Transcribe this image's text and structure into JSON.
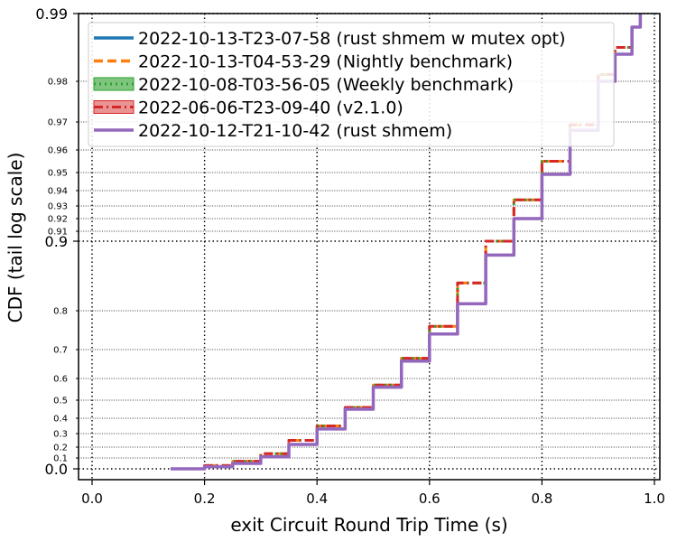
{
  "chart_data": {
    "type": "line",
    "title": "",
    "xlabel": "exit Circuit Round Trip Time (s)",
    "ylabel": "CDF (tail log scale)",
    "xlim": [
      -0.02,
      1.0
    ],
    "x_ticks": [
      0.0,
      0.2,
      0.4,
      0.6,
      0.8,
      1.0
    ],
    "x_tick_labels": [
      "0.0",
      "0.2",
      "0.4",
      "0.6",
      "0.8",
      "1.0"
    ],
    "y_scale": "tail-log",
    "y_major_ticks": [
      0.0,
      0.9,
      0.99
    ],
    "y_major_tick_labels": [
      "0.0",
      "0.9",
      "0.99"
    ],
    "y_minor_ticks": [
      0.1,
      0.2,
      0.3,
      0.4,
      0.5,
      0.6,
      0.7,
      0.8,
      0.91,
      0.92,
      0.93,
      0.94,
      0.95,
      0.96,
      0.97,
      0.98
    ],
    "y_minor_tick_labels": [
      "0.1",
      "0.2",
      "0.3",
      "0.4",
      "0.5",
      "0.6",
      "0.7",
      "0.8",
      "0.91",
      "0.92",
      "0.93",
      "0.94",
      "0.95",
      "0.96",
      "0.97",
      "0.98"
    ],
    "grid": true,
    "legend_position": "top-left",
    "series": [
      {
        "name": "2022-10-13-T23-07-58 (rust shmem w mutex opt)",
        "color": "#1f77b4",
        "style": "solid",
        "x": [
          0.14,
          0.2,
          0.25,
          0.3,
          0.35,
          0.4,
          0.45,
          0.5,
          0.55,
          0.6,
          0.65,
          0.7,
          0.75,
          0.8,
          0.85,
          0.9,
          0.93,
          0.96,
          0.975
        ],
        "y": [
          0.0,
          0.02,
          0.05,
          0.11,
          0.22,
          0.33,
          0.45,
          0.56,
          0.66,
          0.74,
          0.81,
          0.88,
          0.92,
          0.949,
          0.967,
          0.98,
          0.984,
          0.988,
          0.99
        ]
      },
      {
        "name": "2022-10-13-T04-53-29 (Nightly benchmark)",
        "color": "#ff7f0e",
        "style": "dashed",
        "x": [
          0.14,
          0.2,
          0.25,
          0.3,
          0.35,
          0.4,
          0.45,
          0.5,
          0.55,
          0.6,
          0.65,
          0.7,
          0.75,
          0.8,
          0.85,
          0.9,
          0.93,
          0.96,
          0.975
        ],
        "y": [
          0.0,
          0.03,
          0.07,
          0.14,
          0.25,
          0.35,
          0.46,
          0.57,
          0.67,
          0.76,
          0.84,
          0.9,
          0.934,
          0.955,
          0.969,
          0.981,
          0.985,
          0.988,
          0.99
        ]
      },
      {
        "name": "2022-10-08-T03-56-05 (Weekly benchmark)",
        "color": "#2ca02c",
        "style": "dotted",
        "x": [
          0.14,
          0.2,
          0.25,
          0.3,
          0.35,
          0.4,
          0.45,
          0.5,
          0.55,
          0.6,
          0.65,
          0.7,
          0.75,
          0.8,
          0.85,
          0.9,
          0.93,
          0.96,
          0.975
        ],
        "y": [
          0.0,
          0.03,
          0.07,
          0.14,
          0.25,
          0.35,
          0.46,
          0.57,
          0.67,
          0.76,
          0.84,
          0.9,
          0.934,
          0.955,
          0.969,
          0.981,
          0.985,
          0.988,
          0.99
        ]
      },
      {
        "name": "2022-06-06-T23-09-40 (v2.1.0)",
        "color": "#d62728",
        "style": "dashdot",
        "x": [
          0.14,
          0.2,
          0.25,
          0.3,
          0.35,
          0.4,
          0.45,
          0.5,
          0.55,
          0.6,
          0.65,
          0.7,
          0.75,
          0.8,
          0.85,
          0.9,
          0.93,
          0.96,
          0.975
        ],
        "y": [
          0.0,
          0.03,
          0.07,
          0.14,
          0.25,
          0.35,
          0.46,
          0.57,
          0.67,
          0.76,
          0.84,
          0.9,
          0.934,
          0.955,
          0.969,
          0.981,
          0.985,
          0.988,
          0.99
        ]
      },
      {
        "name": "2022-10-12-T21-10-42 (rust shmem)",
        "color": "#9467bd",
        "style": "solid",
        "x": [
          0.14,
          0.2,
          0.25,
          0.3,
          0.35,
          0.4,
          0.45,
          0.5,
          0.55,
          0.6,
          0.65,
          0.7,
          0.75,
          0.8,
          0.85,
          0.9,
          0.93,
          0.96,
          0.975
        ],
        "y": [
          0.0,
          0.02,
          0.05,
          0.11,
          0.22,
          0.33,
          0.45,
          0.56,
          0.66,
          0.74,
          0.81,
          0.88,
          0.92,
          0.949,
          0.967,
          0.98,
          0.984,
          0.988,
          0.99
        ]
      }
    ]
  }
}
